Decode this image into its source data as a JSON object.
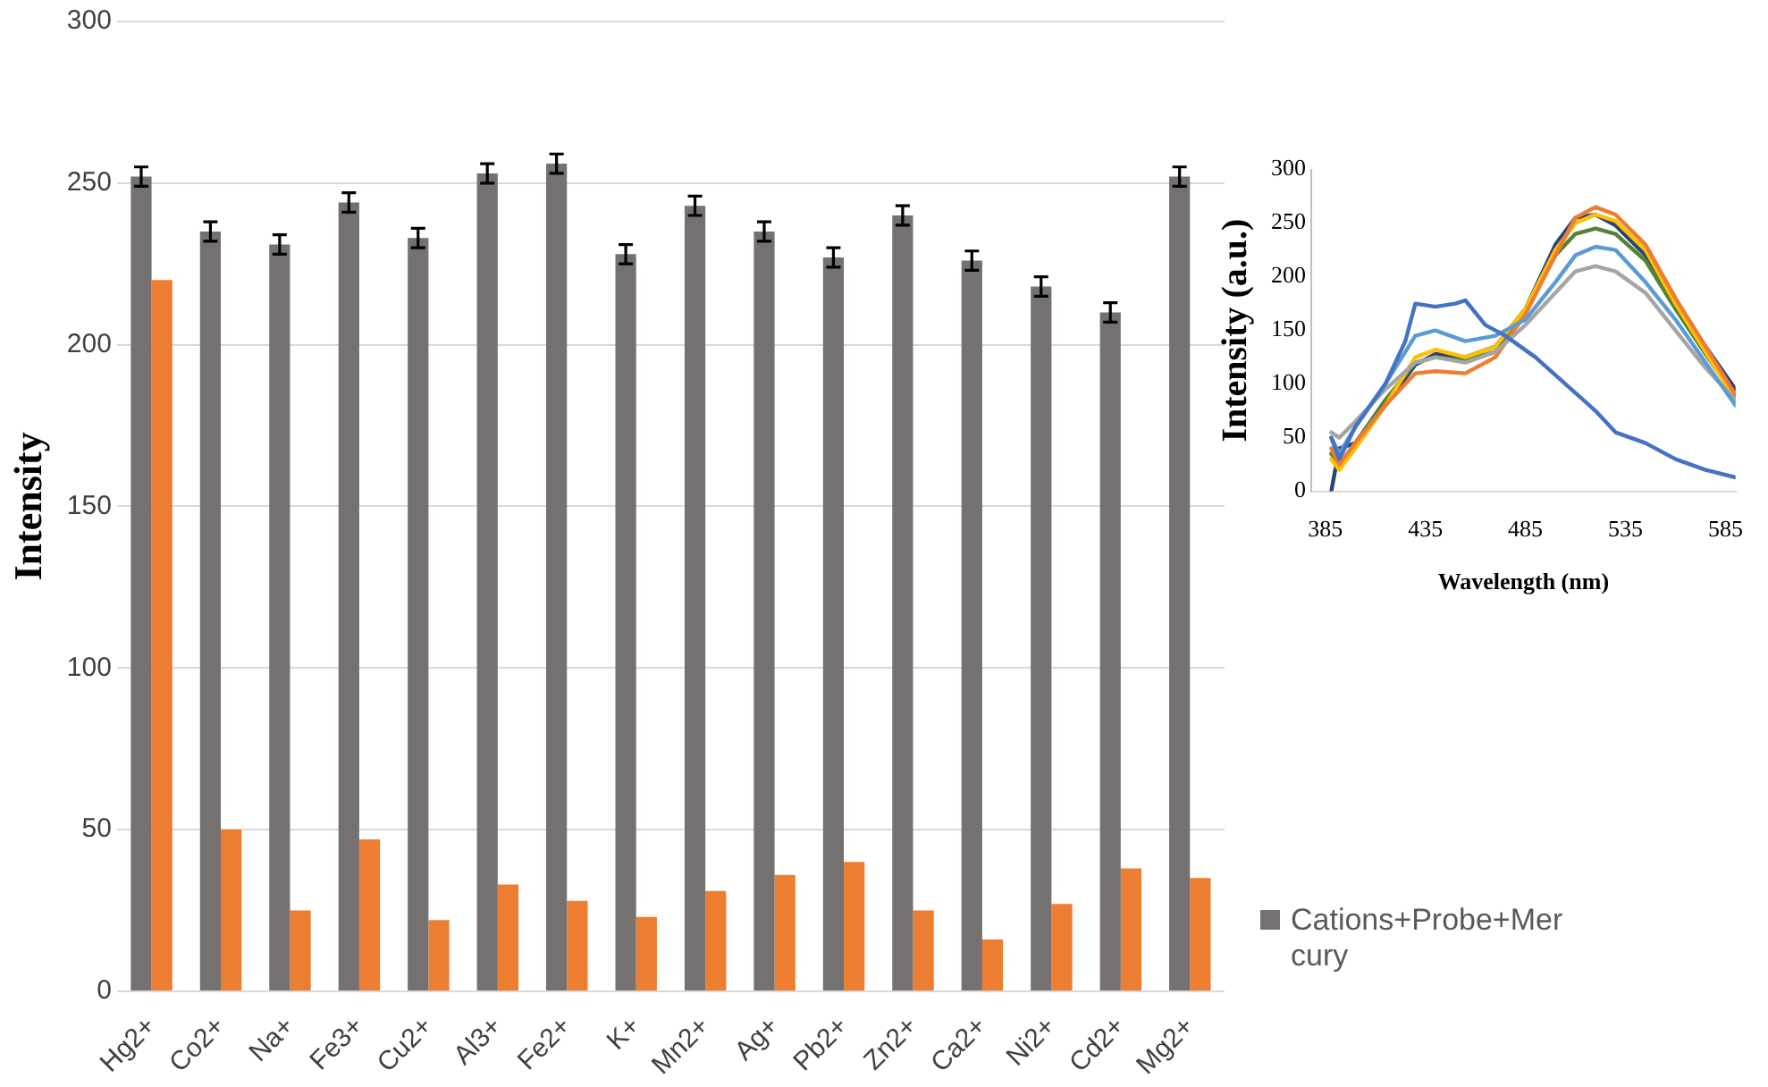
{
  "chart_data": [
    {
      "type": "bar",
      "ylabel": "Intensity",
      "categories": [
        "Hg2+",
        "Co2+",
        "Na+",
        "Fe3+",
        "Cu2+",
        "Al3+",
        "Fe2+",
        "K+",
        "Mn2+",
        "Ag+",
        "Pb2+",
        "Zn2+",
        "Ca2+",
        "Ni2+",
        "Cd2+",
        "Mg2+"
      ],
      "series": [
        {
          "name": "Cations+Probe+Mercury",
          "color": "#767171",
          "values": [
            252,
            235,
            231,
            244,
            233,
            253,
            256,
            228,
            243,
            235,
            227,
            240,
            226,
            218,
            210,
            252
          ],
          "errors": [
            3,
            3,
            3,
            3,
            3,
            3,
            3,
            3,
            3,
            3,
            3,
            3,
            3,
            3,
            3,
            3
          ]
        },
        {
          "color": "#ed7d31",
          "values": [
            220,
            50,
            25,
            47,
            22,
            33,
            28,
            23,
            31,
            36,
            40,
            25,
            16,
            27,
            38,
            35
          ]
        }
      ],
      "ylim": [
        0,
        300
      ],
      "yticks": [
        0,
        50,
        100,
        150,
        200,
        250,
        300
      ],
      "grid": "y",
      "legend": "right"
    },
    {
      "type": "line",
      "xlabel": "Wavelength (nm)",
      "ylabel": "Intensity (a.u.)",
      "xlim": [
        378,
        590
      ],
      "xticks": [
        385,
        435,
        485,
        535,
        585
      ],
      "ylim": [
        0,
        300
      ],
      "yticks": [
        0,
        50,
        100,
        150,
        200,
        250,
        300
      ],
      "series": [
        {
          "color": "#4472c4",
          "x": [
            388,
            392,
            400,
            415,
            425,
            430,
            440,
            450,
            455,
            465,
            475,
            490,
            505,
            520,
            530,
            545,
            560,
            575,
            590
          ],
          "values": [
            50,
            30,
            60,
            100,
            140,
            175,
            172,
            175,
            178,
            155,
            145,
            125,
            100,
            75,
            55,
            45,
            30,
            20,
            13
          ]
        },
        {
          "color": "#5b9bd5",
          "x": [
            388,
            392,
            400,
            415,
            430,
            440,
            455,
            470,
            485,
            500,
            510,
            520,
            530,
            545,
            560,
            575,
            590
          ],
          "values": [
            50,
            35,
            60,
            100,
            145,
            150,
            140,
            145,
            160,
            195,
            220,
            228,
            225,
            195,
            160,
            120,
            80
          ]
        },
        {
          "color": "#a5a5a5",
          "x": [
            388,
            392,
            400,
            415,
            430,
            440,
            455,
            470,
            485,
            500,
            510,
            520,
            530,
            545,
            560,
            575,
            590
          ],
          "values": [
            55,
            50,
            65,
            95,
            120,
            125,
            120,
            130,
            155,
            185,
            205,
            210,
            205,
            185,
            150,
            115,
            85
          ]
        },
        {
          "color": "#ed7d31",
          "x": [
            388,
            392,
            400,
            415,
            430,
            440,
            455,
            470,
            485,
            500,
            510,
            520,
            530,
            545,
            560,
            575,
            590
          ],
          "values": [
            40,
            25,
            45,
            80,
            110,
            112,
            110,
            125,
            165,
            220,
            255,
            265,
            258,
            230,
            180,
            135,
            90
          ]
        },
        {
          "color": "#ffc000",
          "x": [
            388,
            392,
            400,
            415,
            430,
            440,
            455,
            470,
            485,
            500,
            510,
            520,
            530,
            545,
            560,
            575,
            590
          ],
          "values": [
            30,
            20,
            40,
            80,
            125,
            132,
            125,
            135,
            170,
            225,
            250,
            258,
            252,
            225,
            175,
            130,
            85
          ]
        },
        {
          "color": "#548235",
          "x": [
            388,
            392,
            400,
            415,
            430,
            440,
            455,
            470,
            485,
            500,
            510,
            520,
            530,
            545,
            560,
            575,
            590
          ],
          "values": [
            35,
            25,
            45,
            85,
            120,
            125,
            122,
            130,
            168,
            220,
            240,
            245,
            240,
            215,
            170,
            128,
            88
          ]
        },
        {
          "color": "#264478",
          "x": [
            388,
            392,
            400,
            415,
            430,
            440,
            455,
            470,
            485,
            500,
            510,
            520,
            530,
            545,
            560,
            575,
            590
          ],
          "values": [
            0,
            40,
            45,
            80,
            118,
            128,
            125,
            135,
            170,
            230,
            255,
            258,
            248,
            220,
            178,
            135,
            95
          ]
        }
      ],
      "line_style": "solid",
      "marker": "none"
    }
  ]
}
